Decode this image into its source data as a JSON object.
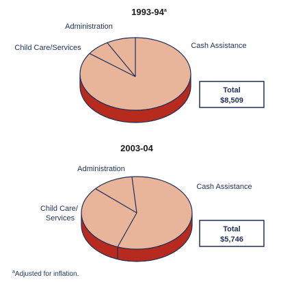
{
  "colors": {
    "slice_fill": "#e8b49a",
    "side_fill": "#b72a1e",
    "outline": "#1c2f5a",
    "text": "#1c2f5a"
  },
  "chart_data": [
    {
      "type": "pie",
      "title": "1993-94",
      "title_superscript": "a",
      "unit_hint": "",
      "slices": [
        {
          "label": "Cash Assistance",
          "share": 0.845
        },
        {
          "label": "Child Care/Services",
          "share": 0.07
        },
        {
          "label": "Administration",
          "share": 0.085
        }
      ],
      "total_label": "Total",
      "total_value": "$8,509"
    },
    {
      "type": "pie",
      "title": "2003-04",
      "slices": [
        {
          "label": "Cash Assistance",
          "share": 0.57
        },
        {
          "label": "Child Care/\nServices",
          "share": 0.31
        },
        {
          "label": "Administration",
          "share": 0.12
        }
      ],
      "total_label": "Total",
      "total_value": "$5,746"
    }
  ],
  "footnote": {
    "marker": "a",
    "text": "Adjusted for inflation."
  }
}
